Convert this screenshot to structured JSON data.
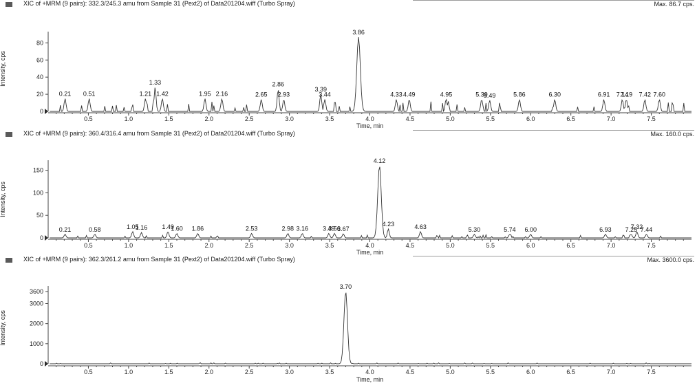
{
  "chart_data": [
    {
      "type": "line",
      "title": "XIC of +MRM (9 pairs): 332.3/245.3 amu from Sample 31 (Pext2) of Data201204.wiff (Turbo Spray)",
      "max_label": "Max. 86.7 cps.",
      "xlabel": "Time, min",
      "ylabel": "Intensity, cps",
      "xlim": [
        0,
        8.0
      ],
      "ylim": [
        0,
        86.7
      ],
      "xticks": [
        0.5,
        1.0,
        1.5,
        2.0,
        2.5,
        3.0,
        3.5,
        4.0,
        4.5,
        5.0,
        5.5,
        6.0,
        6.5,
        7.0,
        7.5
      ],
      "yticks": [
        0,
        20,
        40,
        60,
        80
      ],
      "peaks": [
        {
          "label": "0.21",
          "x": 0.21,
          "y": 15
        },
        {
          "label": "0.51",
          "x": 0.51,
          "y": 15
        },
        {
          "label": "1.21",
          "x": 1.21,
          "y": 15
        },
        {
          "label": "1.33",
          "x": 1.33,
          "y": 28
        },
        {
          "label": "1.42",
          "x": 1.42,
          "y": 15
        },
        {
          "label": "1.95",
          "x": 1.95,
          "y": 15
        },
        {
          "label": "2.16",
          "x": 2.16,
          "y": 15
        },
        {
          "label": "2.65",
          "x": 2.65,
          "y": 14
        },
        {
          "label": "2.86",
          "x": 2.86,
          "y": 26
        },
        {
          "label": "2.93",
          "x": 2.93,
          "y": 14
        },
        {
          "label": "3.39",
          "x": 3.39,
          "y": 20
        },
        {
          "label": "3.44",
          "x": 3.44,
          "y": 14
        },
        {
          "label": "3.86",
          "x": 3.86,
          "y": 86.7
        },
        {
          "label": "4.33",
          "x": 4.33,
          "y": 14
        },
        {
          "label": "4.49",
          "x": 4.49,
          "y": 14
        },
        {
          "label": "4.95",
          "x": 4.95,
          "y": 14
        },
        {
          "label": "5.39",
          "x": 5.39,
          "y": 14
        },
        {
          "label": "5.49",
          "x": 5.49,
          "y": 13
        },
        {
          "label": "5.86",
          "x": 5.86,
          "y": 14
        },
        {
          "label": "6.30",
          "x": 6.3,
          "y": 14
        },
        {
          "label": "6.91",
          "x": 6.91,
          "y": 14
        },
        {
          "label": "7.14",
          "x": 7.14,
          "y": 14
        },
        {
          "label": "7.19",
          "x": 7.19,
          "y": 14
        },
        {
          "label": "7.42",
          "x": 7.42,
          "y": 14
        },
        {
          "label": "7.60",
          "x": 7.6,
          "y": 14
        }
      ],
      "noise_level": 10
    },
    {
      "type": "line",
      "title": "XIC of +MRM (9 pairs): 360.4/316.4 amu from Sample 31 (Pext2) of Data201204.wiff (Turbo Spray)",
      "max_label": "Max. 160.0 cps.",
      "xlabel": "Time, min",
      "ylabel": "Intensity, cps",
      "xlim": [
        0,
        8.0
      ],
      "ylim": [
        0,
        160
      ],
      "xticks": [
        0.5,
        1.0,
        1.5,
        2.0,
        2.5,
        3.0,
        3.5,
        4.0,
        4.5,
        5.0,
        5.5,
        6.0,
        6.5,
        7.0,
        7.5
      ],
      "yticks": [
        0,
        50,
        100,
        150
      ],
      "peaks": [
        {
          "label": "0.21",
          "x": 0.21,
          "y": 8
        },
        {
          "label": "0.58",
          "x": 0.58,
          "y": 8
        },
        {
          "label": "1.05",
          "x": 1.05,
          "y": 14
        },
        {
          "label": "1.16",
          "x": 1.16,
          "y": 12
        },
        {
          "label": "1.49",
          "x": 1.49,
          "y": 14
        },
        {
          "label": "1.60",
          "x": 1.6,
          "y": 10
        },
        {
          "label": "1.86",
          "x": 1.86,
          "y": 10
        },
        {
          "label": "2.53",
          "x": 2.53,
          "y": 10
        },
        {
          "label": "2.98",
          "x": 2.98,
          "y": 10
        },
        {
          "label": "3.16",
          "x": 3.16,
          "y": 10
        },
        {
          "label": "3.49",
          "x": 3.49,
          "y": 10
        },
        {
          "label": "3.56",
          "x": 3.56,
          "y": 10
        },
        {
          "label": "3.67",
          "x": 3.67,
          "y": 9
        },
        {
          "label": "4.12",
          "x": 4.12,
          "y": 160
        },
        {
          "label": "4.23",
          "x": 4.23,
          "y": 20
        },
        {
          "label": "4.63",
          "x": 4.63,
          "y": 14
        },
        {
          "label": "5.30",
          "x": 5.3,
          "y": 8
        },
        {
          "label": "5.74",
          "x": 5.74,
          "y": 8
        },
        {
          "label": "6.00",
          "x": 6.0,
          "y": 8
        },
        {
          "label": "6.93",
          "x": 6.93,
          "y": 8
        },
        {
          "label": "7.25",
          "x": 7.25,
          "y": 8
        },
        {
          "label": "7.32",
          "x": 7.32,
          "y": 14
        },
        {
          "label": "7.44",
          "x": 7.44,
          "y": 8
        }
      ],
      "noise_level": 6
    },
    {
      "type": "line",
      "title": "XIC of +MRM (9 pairs): 362.3/261.2 amu from Sample 31 (Pext2) of Data201204.wiff (Turbo Spray)",
      "max_label": "Max. 3600.0 cps.",
      "xlabel": "Time, min",
      "ylabel": "Intensity, cps",
      "xlim": [
        0,
        8.0
      ],
      "ylim": [
        0,
        3600
      ],
      "xticks": [
        0.5,
        1.0,
        1.5,
        2.0,
        2.5,
        3.0,
        3.5,
        4.0,
        4.5,
        5.0,
        5.5,
        6.0,
        6.5,
        7.0,
        7.5
      ],
      "yticks": [
        0,
        1000,
        2000,
        3000,
        3600
      ],
      "peaks": [
        {
          "label": "3.70",
          "x": 3.7,
          "y": 3600
        }
      ],
      "noise_level": 40
    }
  ]
}
